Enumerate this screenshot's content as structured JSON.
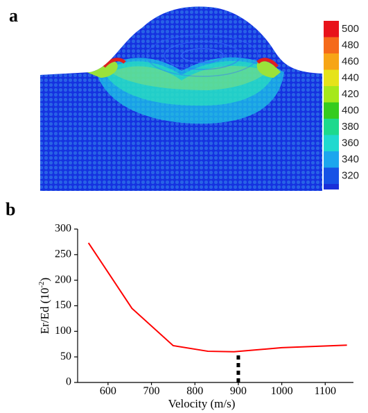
{
  "panel_a": {
    "letter": "a",
    "colorbar": {
      "labels": [
        "500",
        "480",
        "460",
        "440",
        "420",
        "400",
        "380",
        "360",
        "340",
        "320"
      ],
      "colors": [
        "#e8121a",
        "#f56a1a",
        "#f7a516",
        "#e6e31a",
        "#a6e81c",
        "#35cc1e",
        "#1dd98d",
        "#20d9cf",
        "#1ca6ee",
        "#1752e6"
      ],
      "bottom_color": "#1a2fd9"
    },
    "background_color": "#1532e0"
  },
  "panel_b": {
    "letter": "b"
  },
  "chart_data": {
    "type": "line",
    "title": "",
    "xlabel": "Velocity (m/s)",
    "ylabel": "Er/Ed (10-2)",
    "ylabel_base": "Er/Ed (10",
    "ylabel_exp": "-2",
    "ylabel_close": ")",
    "xlim": [
      530,
      1165
    ],
    "ylim": [
      0,
      300
    ],
    "xticks": [
      600,
      700,
      800,
      900,
      1000,
      1100
    ],
    "yticks": [
      0,
      50,
      100,
      150,
      200,
      250,
      300
    ],
    "series": [
      {
        "color": "#ff0000",
        "x": [
          555,
          655,
          750,
          830,
          890,
          1000,
          1150
        ],
        "y": [
          273,
          145,
          72,
          61,
          60,
          68,
          73
        ]
      }
    ],
    "marker": {
      "x": 900,
      "y_from": 0,
      "y_to": 57,
      "style": "dashed"
    }
  }
}
